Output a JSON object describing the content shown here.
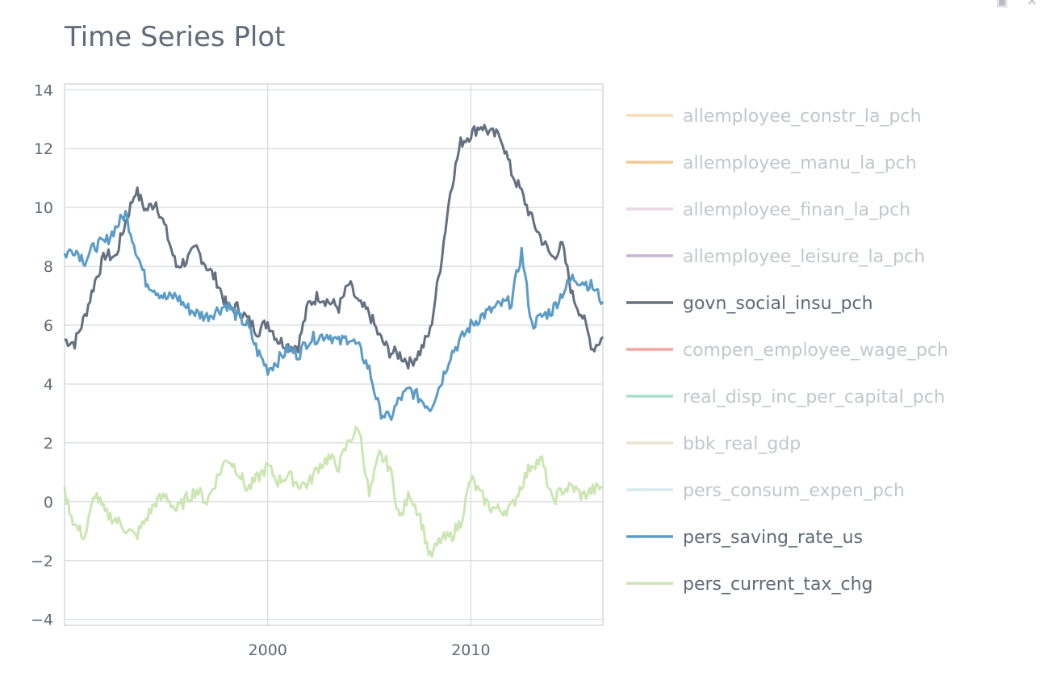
{
  "chart_data": {
    "type": "line",
    "title": "Time Series Plot",
    "xlabel": "",
    "ylabel": "",
    "xlim": [
      1990.0,
      2016.5
    ],
    "ylim": [
      -4.2,
      14.2
    ],
    "x_ticks": [
      2000,
      2010
    ],
    "y_ticks": [
      -4,
      -2,
      0,
      2,
      4,
      6,
      8,
      10,
      12,
      14
    ],
    "y_tick_labels": [
      "−4",
      "−2",
      "0",
      "2",
      "4",
      "6",
      "8",
      "10",
      "12",
      "14"
    ],
    "grid": true,
    "legend_position": "right",
    "series": [
      {
        "name": "allemployee_constr_la_pch",
        "color": "#f8dcb6",
        "visible": false,
        "x": [],
        "y": []
      },
      {
        "name": "allemployee_manu_la_pch",
        "color": "#f4c891",
        "visible": false,
        "x": [],
        "y": []
      },
      {
        "name": "allemployee_finan_la_pch",
        "color": "#ead7e6",
        "visible": false,
        "x": [],
        "y": []
      },
      {
        "name": "allemployee_leisure_la_pch",
        "color": "#c9b3d2",
        "visible": false,
        "x": [],
        "y": []
      },
      {
        "name": "govn_social_insu_pch",
        "color": "#647080",
        "visible": true,
        "x": [
          1990.0,
          1990.5,
          1991.0,
          1991.5,
          1992.0,
          1992.5,
          1993.0,
          1993.5,
          1994.0,
          1994.5,
          1995.0,
          1995.5,
          1996.0,
          1996.5,
          1997.0,
          1997.5,
          1998.0,
          1998.5,
          1999.0,
          1999.5,
          2000.0,
          2000.5,
          2001.0,
          2001.5,
          2002.0,
          2002.5,
          2003.0,
          2003.5,
          2004.0,
          2004.5,
          2005.0,
          2005.5,
          2006.0,
          2006.5,
          2007.0,
          2007.5,
          2008.0,
          2008.5,
          2009.0,
          2009.5,
          2010.0,
          2010.5,
          2011.0,
          2011.5,
          2012.0,
          2012.5,
          2013.0,
          2013.5,
          2014.0,
          2014.5,
          2015.0,
          2015.5,
          2016.0,
          2016.5
        ],
        "y": [
          5.5,
          5.4,
          6.3,
          7.5,
          8.4,
          8.3,
          9.5,
          10.6,
          9.9,
          10.2,
          9.2,
          8.0,
          8.2,
          8.6,
          8.0,
          7.5,
          6.6,
          6.6,
          6.2,
          5.8,
          6.1,
          5.5,
          5.3,
          5.3,
          6.7,
          7.0,
          6.8,
          6.6,
          7.4,
          6.7,
          6.4,
          5.6,
          5.1,
          5.0,
          4.7,
          5.1,
          5.8,
          8.0,
          10.6,
          12.2,
          12.5,
          12.8,
          12.5,
          12.4,
          11.2,
          10.5,
          9.6,
          8.9,
          8.3,
          8.7,
          7.0,
          6.3,
          5.2,
          5.6
        ]
      },
      {
        "name": "compen_employee_wage_pch",
        "color": "#f3a59c",
        "visible": false,
        "x": [],
        "y": []
      },
      {
        "name": "real_disp_inc_per_capital_pch",
        "color": "#a7e0cf",
        "visible": false,
        "x": [],
        "y": []
      },
      {
        "name": "bbk_real_gdp",
        "color": "#e8e4cf",
        "visible": false,
        "x": [],
        "y": []
      },
      {
        "name": "pers_consum_expen_pch",
        "color": "#d5eaef",
        "visible": false,
        "x": [],
        "y": []
      },
      {
        "name": "pers_saving_rate_us",
        "color": "#5b9cc7",
        "visible": true,
        "x": [
          1990.0,
          1990.5,
          1991.0,
          1991.5,
          1992.0,
          1992.5,
          1993.0,
          1993.5,
          1994.0,
          1994.5,
          1995.0,
          1995.5,
          1996.0,
          1996.5,
          1997.0,
          1997.5,
          1998.0,
          1998.5,
          1999.0,
          1999.5,
          2000.0,
          2000.5,
          2001.0,
          2001.5,
          2002.0,
          2002.5,
          2003.0,
          2003.5,
          2004.0,
          2004.5,
          2005.0,
          2005.5,
          2006.0,
          2006.5,
          2007.0,
          2007.5,
          2008.0,
          2008.5,
          2009.0,
          2009.5,
          2010.0,
          2010.5,
          2011.0,
          2011.5,
          2012.0,
          2012.5,
          2013.0,
          2013.5,
          2014.0,
          2014.5,
          2015.0,
          2015.5,
          2016.0,
          2016.5
        ],
        "y": [
          8.4,
          8.6,
          8.2,
          8.7,
          8.8,
          9.3,
          9.8,
          8.6,
          7.5,
          7.2,
          6.9,
          7.0,
          6.6,
          6.4,
          6.3,
          6.5,
          6.7,
          6.3,
          6.0,
          5.1,
          4.5,
          4.8,
          5.2,
          5.0,
          5.5,
          5.6,
          5.7,
          5.4,
          5.6,
          5.2,
          4.5,
          3.1,
          2.8,
          3.5,
          3.8,
          3.5,
          3.2,
          4.0,
          5.0,
          5.5,
          6.0,
          6.3,
          6.5,
          6.7,
          6.8,
          8.5,
          6.0,
          6.3,
          6.5,
          7.1,
          7.6,
          7.5,
          7.3,
          6.8
        ]
      },
      {
        "name": "pers_current_tax_chg",
        "color": "#cbe6b3",
        "visible": true,
        "x": [
          1990.0,
          1990.5,
          1991.0,
          1991.5,
          1992.0,
          1992.5,
          1993.0,
          1993.5,
          1994.0,
          1994.5,
          1995.0,
          1995.5,
          1996.0,
          1996.5,
          1997.0,
          1997.5,
          1998.0,
          1998.5,
          1999.0,
          1999.5,
          2000.0,
          2000.5,
          2001.0,
          2001.5,
          2002.0,
          2002.5,
          2003.0,
          2003.5,
          2004.0,
          2004.5,
          2005.0,
          2005.5,
          2006.0,
          2006.5,
          2007.0,
          2007.5,
          2008.0,
          2008.5,
          2009.0,
          2009.5,
          2010.0,
          2010.5,
          2011.0,
          2011.5,
          2012.0,
          2012.5,
          2013.0,
          2013.5,
          2014.0,
          2014.5,
          2015.0,
          2015.5,
          2016.0,
          2016.5
        ],
        "y": [
          0.3,
          -0.8,
          -1.2,
          0.3,
          -0.4,
          -0.6,
          -0.9,
          -1.2,
          -0.6,
          0.0,
          0.2,
          -0.3,
          0.1,
          0.4,
          0.0,
          0.8,
          1.5,
          1.1,
          0.4,
          0.8,
          1.2,
          0.7,
          0.9,
          0.6,
          0.6,
          1.2,
          1.5,
          1.2,
          2.1,
          2.5,
          0.2,
          1.6,
          1.2,
          -0.6,
          0.3,
          -0.5,
          -1.9,
          -1.3,
          -1.2,
          -0.7,
          0.8,
          0.2,
          -0.2,
          -0.3,
          -0.2,
          0.6,
          1.3,
          1.4,
          0.0,
          0.4,
          0.5,
          0.2,
          0.4,
          0.5
        ]
      }
    ]
  }
}
